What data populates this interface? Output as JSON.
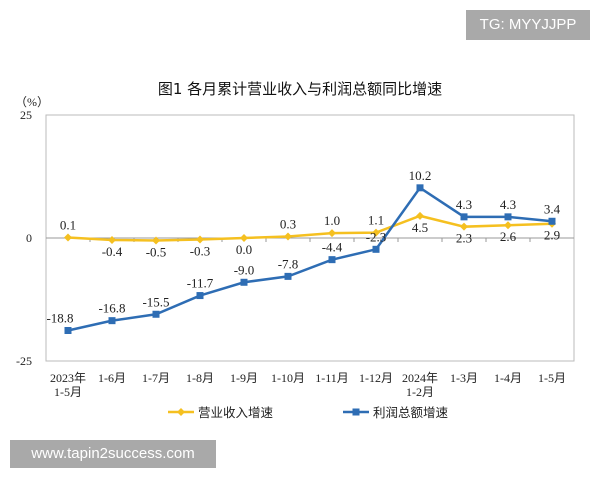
{
  "watermark_top": "TG: MYYJJPP",
  "watermark_bottom": "www.tapin2success.com",
  "chart_data": {
    "type": "line",
    "title": "图1  各月累计营业收入与利润总额同比增速",
    "ylabel": "（%）",
    "ylim": [
      -25,
      25
    ],
    "yticks": [
      "25",
      "0",
      "-25"
    ],
    "grid": false,
    "legend_position": "bottom",
    "categories": [
      [
        "2023年",
        "1-5月"
      ],
      [
        "1-6月"
      ],
      [
        "1-7月"
      ],
      [
        "1-8月"
      ],
      [
        "1-9月"
      ],
      [
        "1-10月"
      ],
      [
        "1-11月"
      ],
      [
        "1-12月"
      ],
      [
        "2024年",
        "1-2月"
      ],
      [
        "1-3月"
      ],
      [
        "1-4月"
      ],
      [
        "1-5月"
      ]
    ],
    "series": [
      {
        "name": "营业收入增速",
        "color": "#f5c020",
        "marker": "diamond",
        "values": [
          0.1,
          -0.4,
          -0.5,
          -0.3,
          0.0,
          0.3,
          1.0,
          1.1,
          4.5,
          2.3,
          2.6,
          2.9
        ],
        "labels": [
          "0.1",
          "-0.4",
          "-0.5",
          "-0.3",
          "0.0",
          "0.3",
          "1.0",
          "1.1",
          "4.5",
          "2.3",
          "2.6",
          "2.9"
        ]
      },
      {
        "name": "利润总额增速",
        "color": "#2e6db4",
        "marker": "square",
        "values": [
          -18.8,
          -16.8,
          -15.5,
          -11.7,
          -9.0,
          -7.8,
          -4.4,
          -2.3,
          10.2,
          4.3,
          4.3,
          3.4
        ],
        "labels": [
          "-18.8",
          "-16.8",
          "-15.5",
          "-11.7",
          "-9.0",
          "-7.8",
          "-4.4",
          "-2.3",
          "10.2",
          "4.3",
          "4.3",
          "3.4"
        ]
      }
    ]
  }
}
